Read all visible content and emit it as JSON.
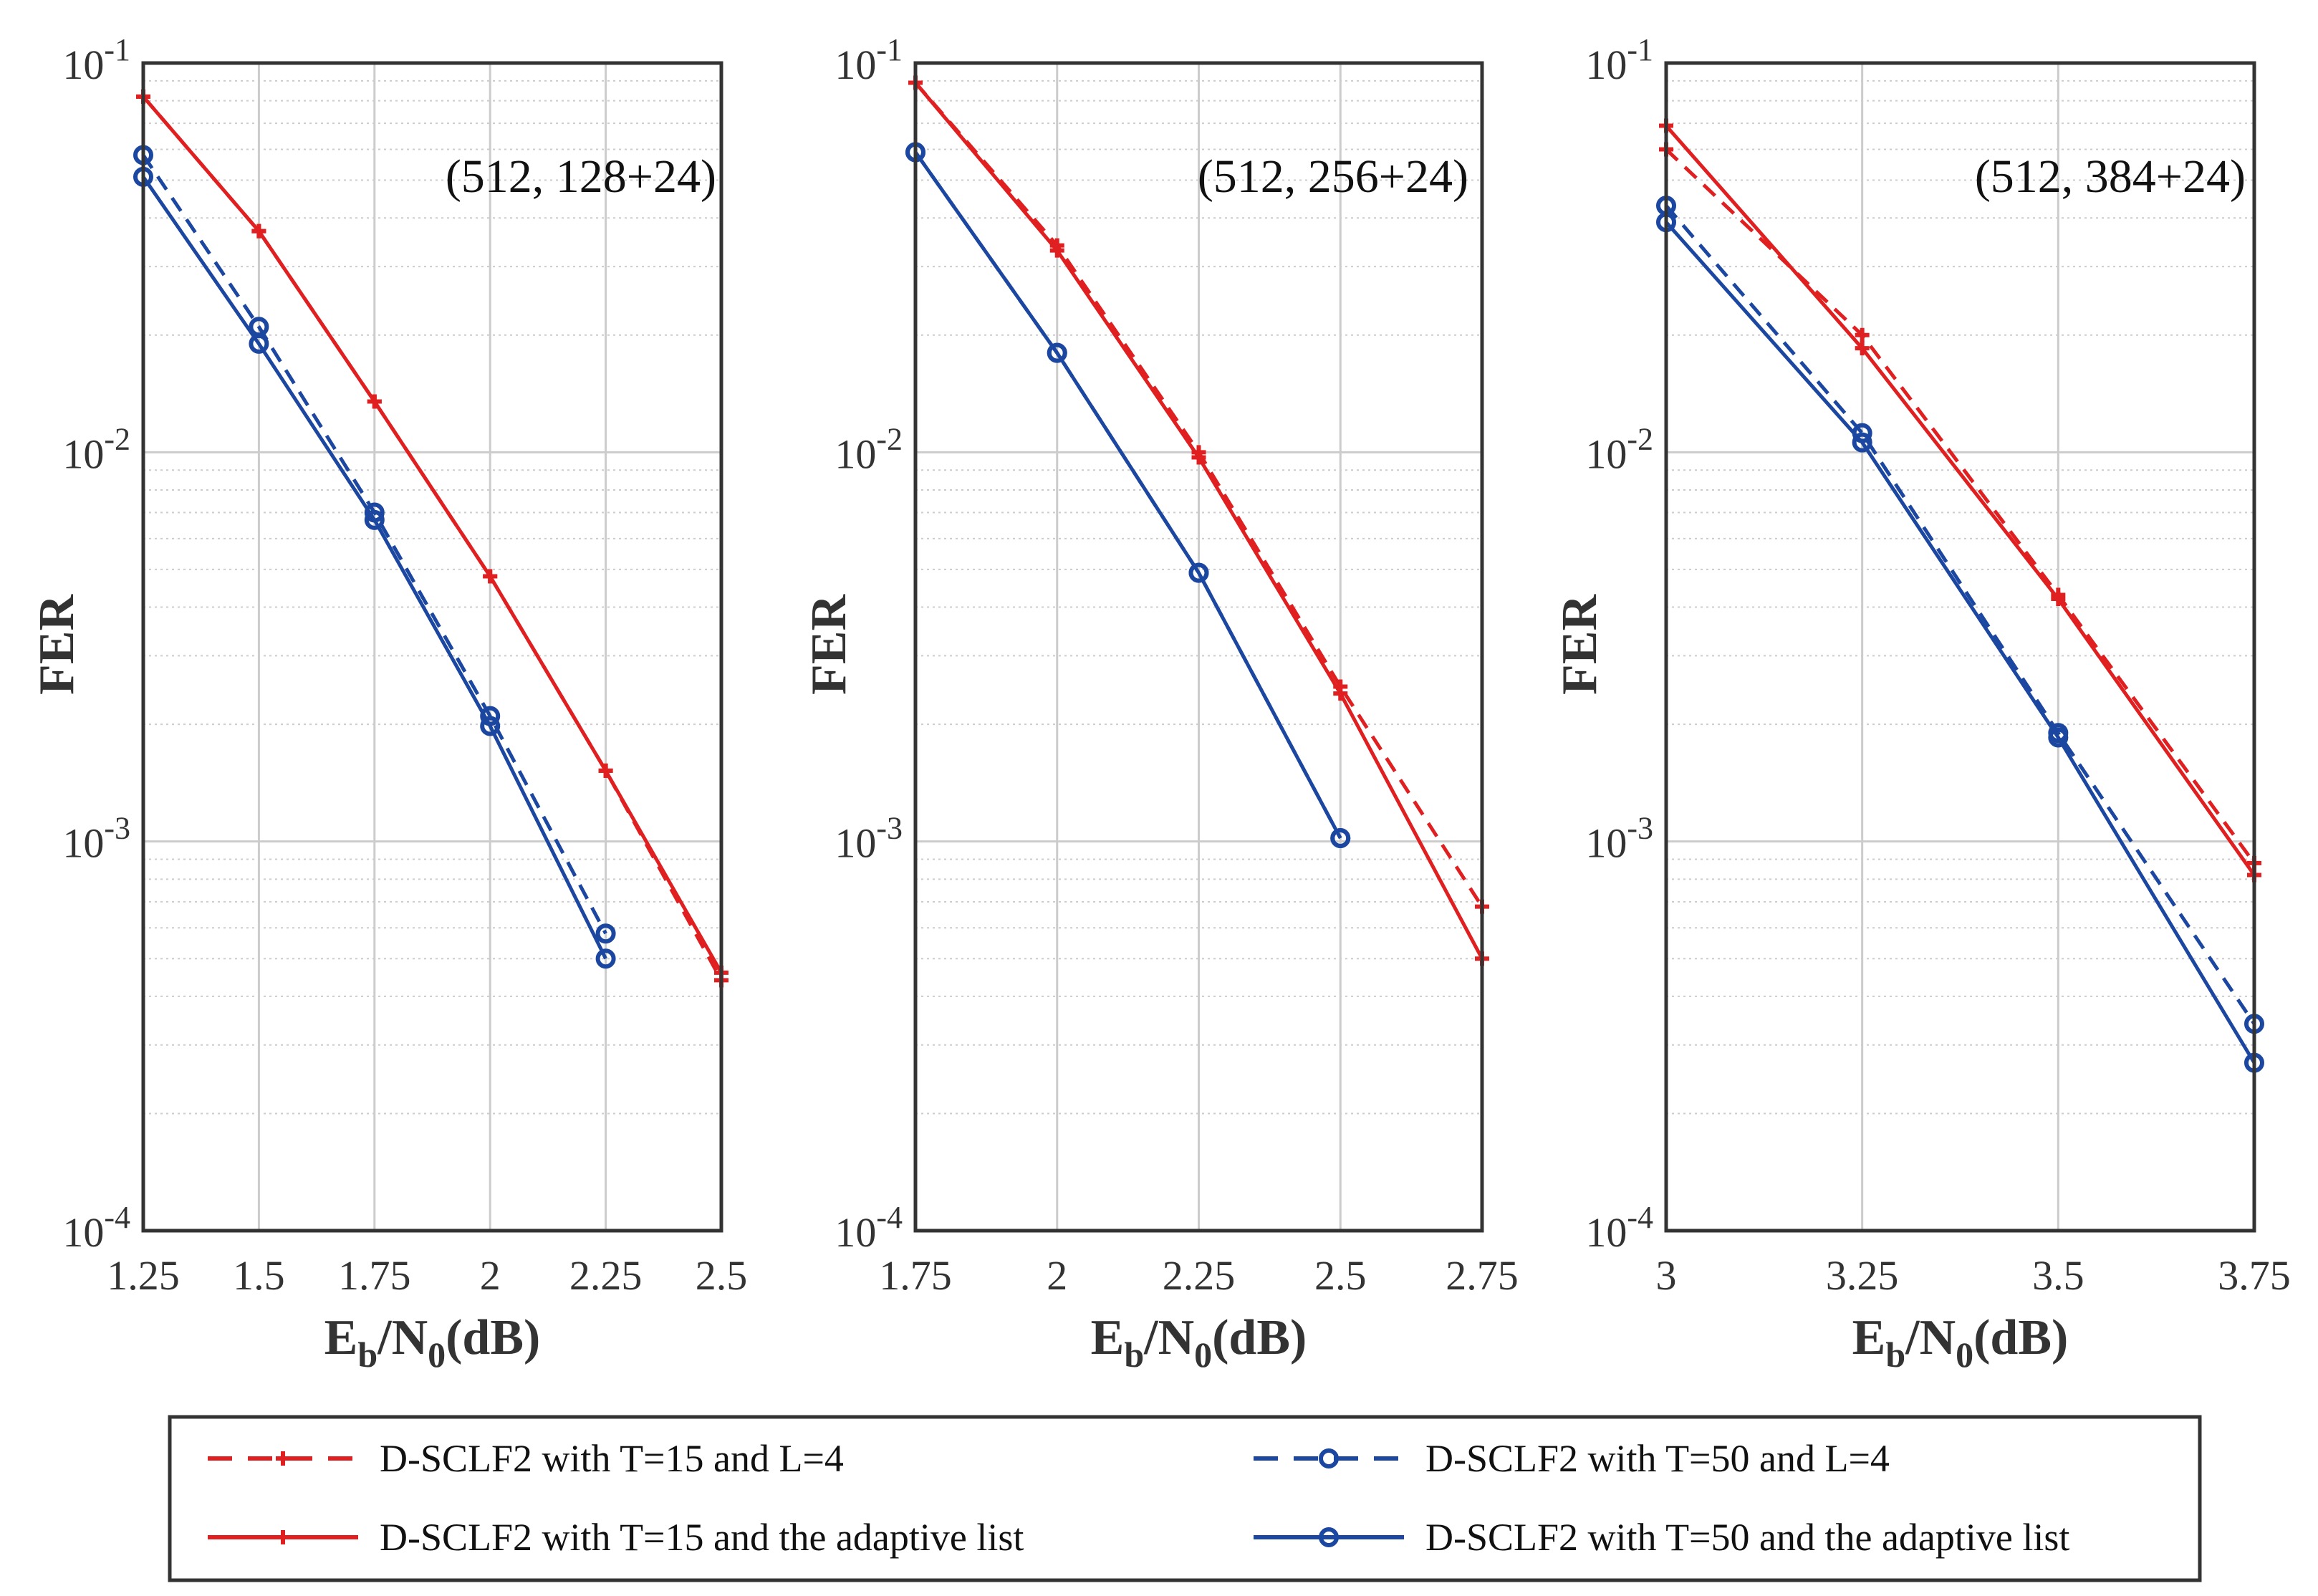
{
  "chart_data": [
    {
      "type": "line",
      "annotation": "(512, 128+24)",
      "xlabel": {
        "base": "E",
        "sub1": "b",
        "mid": "/N",
        "sub2": "0",
        "tail": "(dB)"
      },
      "ylabel": "FER",
      "xlim": [
        1.25,
        2.5
      ],
      "ylim": [
        0.0001,
        0.1
      ],
      "yscale": "log",
      "x_ticks": [
        "1.25",
        "1.5",
        "1.75",
        "2",
        "2.25",
        "2.5"
      ],
      "series": [
        {
          "name": "D-SCLF2 with T=15 and L=4",
          "x": [
            1.25,
            1.5,
            1.75,
            2,
            2.25,
            2.5
          ],
          "y": [
            0.082,
            0.037,
            0.0135,
            0.0048,
            0.00152,
            0.00044
          ]
        },
        {
          "name": "D-SCLF2 with T=15 and the adaptive list",
          "x": [
            1.25,
            1.5,
            1.75,
            2,
            2.25,
            2.5
          ],
          "y": [
            0.082,
            0.037,
            0.0135,
            0.0048,
            0.00152,
            0.00046
          ]
        },
        {
          "name": "D-SCLF2 with T=50 and L=4",
          "x": [
            1.25,
            1.5,
            1.75,
            2,
            2.25
          ],
          "y": [
            0.058,
            0.021,
            0.007,
            0.0021,
            0.00058
          ]
        },
        {
          "name": "D-SCLF2 with T=50 and the adaptive list",
          "x": [
            1.25,
            1.5,
            1.75,
            2,
            2.25
          ],
          "y": [
            0.051,
            0.019,
            0.0067,
            0.00198,
            0.0005
          ]
        }
      ]
    },
    {
      "type": "line",
      "annotation": "(512, 256+24)",
      "xlabel": {
        "base": "E",
        "sub1": "b",
        "mid": "/N",
        "sub2": "0",
        "tail": "(dB)"
      },
      "ylabel": "FER",
      "xlim": [
        1.75,
        2.75
      ],
      "ylim": [
        0.0001,
        0.1
      ],
      "yscale": "log",
      "x_ticks": [
        "1.75",
        "2",
        "2.25",
        "2.5",
        "2.75"
      ],
      "series": [
        {
          "name": "D-SCLF2 with T=15 and L=4",
          "x": [
            1.75,
            2,
            2.25,
            2.5,
            2.75
          ],
          "y": [
            0.089,
            0.034,
            0.01,
            0.0025,
            0.00068
          ]
        },
        {
          "name": "D-SCLF2 with T=15 and the adaptive list",
          "x": [
            1.75,
            2,
            2.25,
            2.5,
            2.75
          ],
          "y": [
            0.089,
            0.033,
            0.0097,
            0.0024,
            0.0005
          ]
        },
        {
          "name": "D-SCLF2 with T=50 and L=4",
          "x": [
            1.75,
            2,
            2.25,
            2.5
          ],
          "y": [
            0.059,
            0.018,
            0.0049,
            0.00102
          ]
        },
        {
          "name": "D-SCLF2 with T=50 and the adaptive list",
          "x": [
            1.75,
            2,
            2.25,
            2.5
          ],
          "y": [
            0.059,
            0.018,
            0.0049,
            0.00102
          ]
        }
      ]
    },
    {
      "type": "line",
      "annotation": "(512, 384+24)",
      "xlabel": {
        "base": "E",
        "sub1": "b",
        "mid": "/N",
        "sub2": "0",
        "tail": "(dB)"
      },
      "ylabel": "FER",
      "xlim": [
        3,
        3.75
      ],
      "ylim": [
        0.0001,
        0.1
      ],
      "yscale": "log",
      "x_ticks": [
        "3",
        "3.25",
        "3.5",
        "3.75"
      ],
      "series": [
        {
          "name": "D-SCLF2 with T=15 and L=4",
          "x": [
            3,
            3.25,
            3.5,
            3.75
          ],
          "y": [
            0.06,
            0.02,
            0.0043,
            0.00088
          ]
        },
        {
          "name": "D-SCLF2 with T=15 and the adaptive list",
          "x": [
            3,
            3.25,
            3.5,
            3.75
          ],
          "y": [
            0.069,
            0.0185,
            0.0042,
            0.00082
          ]
        },
        {
          "name": "D-SCLF2 with T=50 and L=4",
          "x": [
            3,
            3.25,
            3.5,
            3.75
          ],
          "y": [
            0.043,
            0.0112,
            0.0019,
            0.00034
          ]
        },
        {
          "name": "D-SCLF2 with T=50 and the adaptive list",
          "x": [
            3,
            3.25,
            3.5,
            3.75
          ],
          "y": [
            0.039,
            0.0106,
            0.00185,
            0.00027
          ]
        }
      ]
    }
  ],
  "y_tick_labels": [
    {
      "base": "10",
      "exp": "-1"
    },
    {
      "base": "10",
      "exp": "-2"
    },
    {
      "base": "10",
      "exp": "-3"
    },
    {
      "base": "10",
      "exp": "-4"
    }
  ],
  "legend": [
    {
      "label": "D-SCLF2 with T=15 and L=4",
      "color": "#e02020",
      "dashed": true,
      "marker": "plus"
    },
    {
      "label": "D-SCLF2 with T=50 and L=4",
      "color": "#1c47a0",
      "dashed": true,
      "marker": "circle"
    },
    {
      "label": "D-SCLF2 with T=15 and the adaptive list",
      "color": "#e02020",
      "dashed": false,
      "marker": "plus"
    },
    {
      "label": "D-SCLF2 with T=50 and the adaptive list",
      "color": "#1c47a0",
      "dashed": false,
      "marker": "circle"
    }
  ],
  "colors": {
    "red": "#e02020",
    "blue": "#1c47a0",
    "axis": "#333333",
    "grid": "#cccccc"
  }
}
